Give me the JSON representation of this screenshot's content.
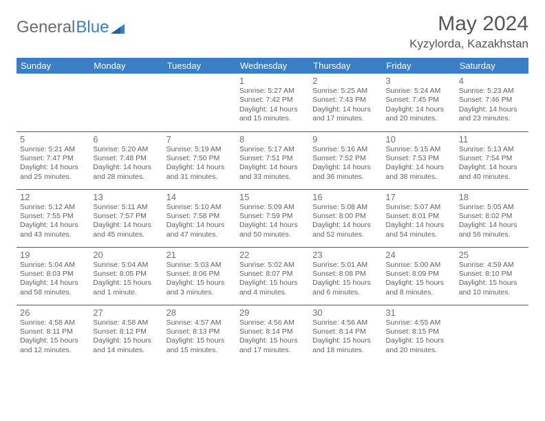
{
  "brand": {
    "part1": "General",
    "part2": "Blue"
  },
  "title": "May 2024",
  "location": "Kyzylorda, Kazakhstan",
  "colors": {
    "header_bg": "#3a7fc4",
    "header_text": "#ffffff",
    "cell_border": "#2f5f95",
    "text_muted": "#707070",
    "brand_gray": "#6b6b6b",
    "brand_blue": "#3a7fc4"
  },
  "weekdays": [
    "Sunday",
    "Monday",
    "Tuesday",
    "Wednesday",
    "Thursday",
    "Friday",
    "Saturday"
  ],
  "weeks": [
    [
      null,
      null,
      null,
      {
        "n": "1",
        "sr": "Sunrise: 5:27 AM",
        "ss": "Sunset: 7:42 PM",
        "d1": "Daylight: 14 hours",
        "d2": "and 15 minutes."
      },
      {
        "n": "2",
        "sr": "Sunrise: 5:25 AM",
        "ss": "Sunset: 7:43 PM",
        "d1": "Daylight: 14 hours",
        "d2": "and 17 minutes."
      },
      {
        "n": "3",
        "sr": "Sunrise: 5:24 AM",
        "ss": "Sunset: 7:45 PM",
        "d1": "Daylight: 14 hours",
        "d2": "and 20 minutes."
      },
      {
        "n": "4",
        "sr": "Sunrise: 5:23 AM",
        "ss": "Sunset: 7:46 PM",
        "d1": "Daylight: 14 hours",
        "d2": "and 23 minutes."
      }
    ],
    [
      {
        "n": "5",
        "sr": "Sunrise: 5:21 AM",
        "ss": "Sunset: 7:47 PM",
        "d1": "Daylight: 14 hours",
        "d2": "and 25 minutes."
      },
      {
        "n": "6",
        "sr": "Sunrise: 5:20 AM",
        "ss": "Sunset: 7:48 PM",
        "d1": "Daylight: 14 hours",
        "d2": "and 28 minutes."
      },
      {
        "n": "7",
        "sr": "Sunrise: 5:19 AM",
        "ss": "Sunset: 7:50 PM",
        "d1": "Daylight: 14 hours",
        "d2": "and 31 minutes."
      },
      {
        "n": "8",
        "sr": "Sunrise: 5:17 AM",
        "ss": "Sunset: 7:51 PM",
        "d1": "Daylight: 14 hours",
        "d2": "and 33 minutes."
      },
      {
        "n": "9",
        "sr": "Sunrise: 5:16 AM",
        "ss": "Sunset: 7:52 PM",
        "d1": "Daylight: 14 hours",
        "d2": "and 36 minutes."
      },
      {
        "n": "10",
        "sr": "Sunrise: 5:15 AM",
        "ss": "Sunset: 7:53 PM",
        "d1": "Daylight: 14 hours",
        "d2": "and 38 minutes."
      },
      {
        "n": "11",
        "sr": "Sunrise: 5:13 AM",
        "ss": "Sunset: 7:54 PM",
        "d1": "Daylight: 14 hours",
        "d2": "and 40 minutes."
      }
    ],
    [
      {
        "n": "12",
        "sr": "Sunrise: 5:12 AM",
        "ss": "Sunset: 7:55 PM",
        "d1": "Daylight: 14 hours",
        "d2": "and 43 minutes."
      },
      {
        "n": "13",
        "sr": "Sunrise: 5:11 AM",
        "ss": "Sunset: 7:57 PM",
        "d1": "Daylight: 14 hours",
        "d2": "and 45 minutes."
      },
      {
        "n": "14",
        "sr": "Sunrise: 5:10 AM",
        "ss": "Sunset: 7:58 PM",
        "d1": "Daylight: 14 hours",
        "d2": "and 47 minutes."
      },
      {
        "n": "15",
        "sr": "Sunrise: 5:09 AM",
        "ss": "Sunset: 7:59 PM",
        "d1": "Daylight: 14 hours",
        "d2": "and 50 minutes."
      },
      {
        "n": "16",
        "sr": "Sunrise: 5:08 AM",
        "ss": "Sunset: 8:00 PM",
        "d1": "Daylight: 14 hours",
        "d2": "and 52 minutes."
      },
      {
        "n": "17",
        "sr": "Sunrise: 5:07 AM",
        "ss": "Sunset: 8:01 PM",
        "d1": "Daylight: 14 hours",
        "d2": "and 54 minutes."
      },
      {
        "n": "18",
        "sr": "Sunrise: 5:05 AM",
        "ss": "Sunset: 8:02 PM",
        "d1": "Daylight: 14 hours",
        "d2": "and 56 minutes."
      }
    ],
    [
      {
        "n": "19",
        "sr": "Sunrise: 5:04 AM",
        "ss": "Sunset: 8:03 PM",
        "d1": "Daylight: 14 hours",
        "d2": "and 58 minutes."
      },
      {
        "n": "20",
        "sr": "Sunrise: 5:04 AM",
        "ss": "Sunset: 8:05 PM",
        "d1": "Daylight: 15 hours",
        "d2": "and 1 minute."
      },
      {
        "n": "21",
        "sr": "Sunrise: 5:03 AM",
        "ss": "Sunset: 8:06 PM",
        "d1": "Daylight: 15 hours",
        "d2": "and 3 minutes."
      },
      {
        "n": "22",
        "sr": "Sunrise: 5:02 AM",
        "ss": "Sunset: 8:07 PM",
        "d1": "Daylight: 15 hours",
        "d2": "and 4 minutes."
      },
      {
        "n": "23",
        "sr": "Sunrise: 5:01 AM",
        "ss": "Sunset: 8:08 PM",
        "d1": "Daylight: 15 hours",
        "d2": "and 6 minutes."
      },
      {
        "n": "24",
        "sr": "Sunrise: 5:00 AM",
        "ss": "Sunset: 8:09 PM",
        "d1": "Daylight: 15 hours",
        "d2": "and 8 minutes."
      },
      {
        "n": "25",
        "sr": "Sunrise: 4:59 AM",
        "ss": "Sunset: 8:10 PM",
        "d1": "Daylight: 15 hours",
        "d2": "and 10 minutes."
      }
    ],
    [
      {
        "n": "26",
        "sr": "Sunrise: 4:58 AM",
        "ss": "Sunset: 8:11 PM",
        "d1": "Daylight: 15 hours",
        "d2": "and 12 minutes."
      },
      {
        "n": "27",
        "sr": "Sunrise: 4:58 AM",
        "ss": "Sunset: 8:12 PM",
        "d1": "Daylight: 15 hours",
        "d2": "and 14 minutes."
      },
      {
        "n": "28",
        "sr": "Sunrise: 4:57 AM",
        "ss": "Sunset: 8:13 PM",
        "d1": "Daylight: 15 hours",
        "d2": "and 15 minutes."
      },
      {
        "n": "29",
        "sr": "Sunrise: 4:56 AM",
        "ss": "Sunset: 8:14 PM",
        "d1": "Daylight: 15 hours",
        "d2": "and 17 minutes."
      },
      {
        "n": "30",
        "sr": "Sunrise: 4:56 AM",
        "ss": "Sunset: 8:14 PM",
        "d1": "Daylight: 15 hours",
        "d2": "and 18 minutes."
      },
      {
        "n": "31",
        "sr": "Sunrise: 4:55 AM",
        "ss": "Sunset: 8:15 PM",
        "d1": "Daylight: 15 hours",
        "d2": "and 20 minutes."
      },
      null
    ]
  ]
}
